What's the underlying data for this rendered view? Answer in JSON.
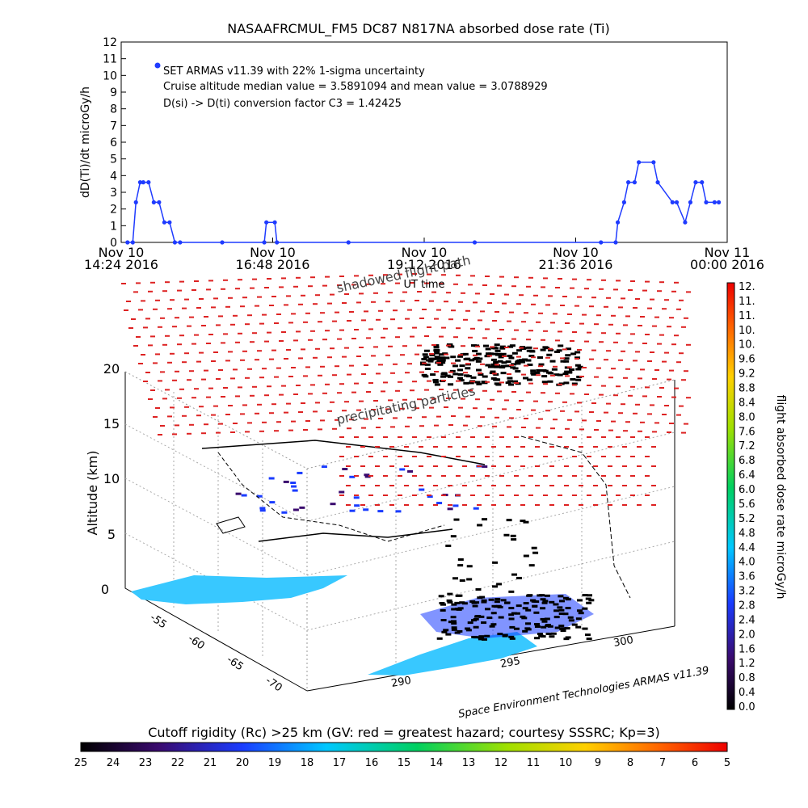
{
  "top_chart": {
    "title": "NASAAFRCMUL_FM5 DC87 N817NA absorbed dose rate (Ti)",
    "ylabel": "dD(Ti)/dt microGy/h",
    "ylim": [
      0,
      12
    ],
    "yticks": [
      "0",
      "1",
      "2",
      "3",
      "4",
      "5",
      "6",
      "7",
      "8",
      "9",
      "10",
      "11",
      "12"
    ],
    "xticks": [
      {
        "line1": "Nov 10",
        "line2": "14:24 2016"
      },
      {
        "line1": "Nov 10",
        "line2": "16:48 2016"
      },
      {
        "line1": "Nov 10",
        "line2": "19:12 2016"
      },
      {
        "line1": "Nov 10",
        "line2": "21:36 2016"
      },
      {
        "line1": "Nov 11",
        "line2": "00:00 2016"
      }
    ],
    "xlabel": "UT time",
    "legend": [
      "SET ARMAS v11.39 with 22% 1-sigma uncertainty",
      "Cruise altitude median value = 3.5891094 and mean value = 3.0788929",
      "D(si) -> D(ti) conversion factor C3 = 1.42425"
    ],
    "series_color": "#1f3bff"
  },
  "chart_data": [
    {
      "type": "line",
      "title": "NASAAFRCMUL_FM5 DC87 N817NA absorbed dose rate (Ti)",
      "xlabel": "UT time",
      "ylabel": "dD(Ti)/dt microGy/h",
      "ylim": [
        0,
        12
      ],
      "x_range": [
        "2016-11-10 14:24",
        "2016-11-11 00:00"
      ],
      "series": [
        {
          "name": "SET ARMAS v11.39 with 22% 1-sigma uncertainty",
          "x": [
            "2016-11-10 14:30",
            "2016-11-10 14:35",
            "2016-11-10 14:38",
            "2016-11-10 14:42",
            "2016-11-10 14:45",
            "2016-11-10 14:50",
            "2016-11-10 14:55",
            "2016-11-10 15:00",
            "2016-11-10 15:05",
            "2016-11-10 15:10",
            "2016-11-10 15:15",
            "2016-11-10 15:20",
            "2016-11-10 16:00",
            "2016-11-10 16:40",
            "2016-11-10 16:42",
            "2016-11-10 16:50",
            "2016-11-10 16:52",
            "2016-11-10 18:00",
            "2016-11-10 20:00",
            "2016-11-10 22:00",
            "2016-11-10 22:14",
            "2016-11-10 22:16",
            "2016-11-10 22:22",
            "2016-11-10 22:26",
            "2016-11-10 22:32",
            "2016-11-10 22:36",
            "2016-11-10 22:50",
            "2016-11-10 22:54",
            "2016-11-10 23:08",
            "2016-11-10 23:12",
            "2016-11-10 23:20",
            "2016-11-10 23:25",
            "2016-11-10 23:30",
            "2016-11-10 23:36",
            "2016-11-10 23:40",
            "2016-11-10 23:48",
            "2016-11-10 23:52"
          ],
          "y": [
            0,
            0,
            2.4,
            3.6,
            3.6,
            3.6,
            2.4,
            2.4,
            1.2,
            1.2,
            0,
            0,
            0,
            0,
            1.2,
            1.2,
            0,
            0,
            0,
            0,
            0,
            1.2,
            2.4,
            3.6,
            3.6,
            4.8,
            4.8,
            3.6,
            2.4,
            2.4,
            1.2,
            2.4,
            3.6,
            3.6,
            2.4,
            2.4,
            2.4
          ]
        }
      ],
      "legend_entries": [
        "SET ARMAS v11.39 with 22% 1-sigma uncertainty",
        "Cruise altitude median value = 3.5891094 and mean value = 3.0788929",
        "D(si) -> D(ti) conversion factor C3 = 1.42425"
      ],
      "grid": false,
      "legend_placement": "top-left"
    },
    {
      "type": "scatter",
      "xlabel": "",
      "ylabel": "Altitude (km)",
      "z_ticks": [
        "0",
        "5",
        "10",
        "15",
        "20"
      ],
      "x_ticks": [
        "-55",
        "-60",
        "-65",
        "-70"
      ],
      "y_ticks": [
        "290",
        "295",
        "300"
      ],
      "annotations": [
        "shadowed flight path",
        "precipitating particles"
      ],
      "points_meta": "flight path colored by absorbed dose rate",
      "cloud_color": "#dd2222"
    }
  ],
  "scene": {
    "altitude_label": "Altitude (km)",
    "altitude_ticks": [
      "0",
      "5",
      "10",
      "15",
      "20"
    ],
    "lat_ticks": [
      "-55",
      "-60",
      "-65",
      "-70"
    ],
    "lon_ticks": [
      "290",
      "295",
      "300"
    ],
    "shadow_label": "shadowed flight path",
    "ut_label": "UT time",
    "precip_label": "precipitating particles",
    "credit": "Space Environment Technologies ARMAS v11.39"
  },
  "right_colorbar": {
    "label": "flight absorbed dose rate microGy/h",
    "ticks": [
      "12.",
      "11.",
      "11.",
      "10.",
      "10.",
      "9.6",
      "9.2",
      "8.8",
      "8.4",
      "8.0",
      "7.6",
      "7.2",
      "6.8",
      "6.4",
      "6.0",
      "5.6",
      "5.2",
      "4.8",
      "4.4",
      "4.0",
      "3.6",
      "3.2",
      "2.8",
      "2.4",
      "2.0",
      "1.6",
      "1.2",
      "0.8",
      "0.4",
      "0.0"
    ]
  },
  "bottom_colorbar": {
    "label": "Cutoff rigidity (Rc) >25 km (GV: red = greatest hazard; courtesy SSSRC; Kp=3)",
    "ticks": [
      "25",
      "24",
      "23",
      "22",
      "21",
      "20",
      "19",
      "18",
      "17",
      "16",
      "15",
      "14",
      "13",
      "12",
      "11",
      "10",
      "9",
      "8",
      "7",
      "6",
      "5"
    ]
  }
}
